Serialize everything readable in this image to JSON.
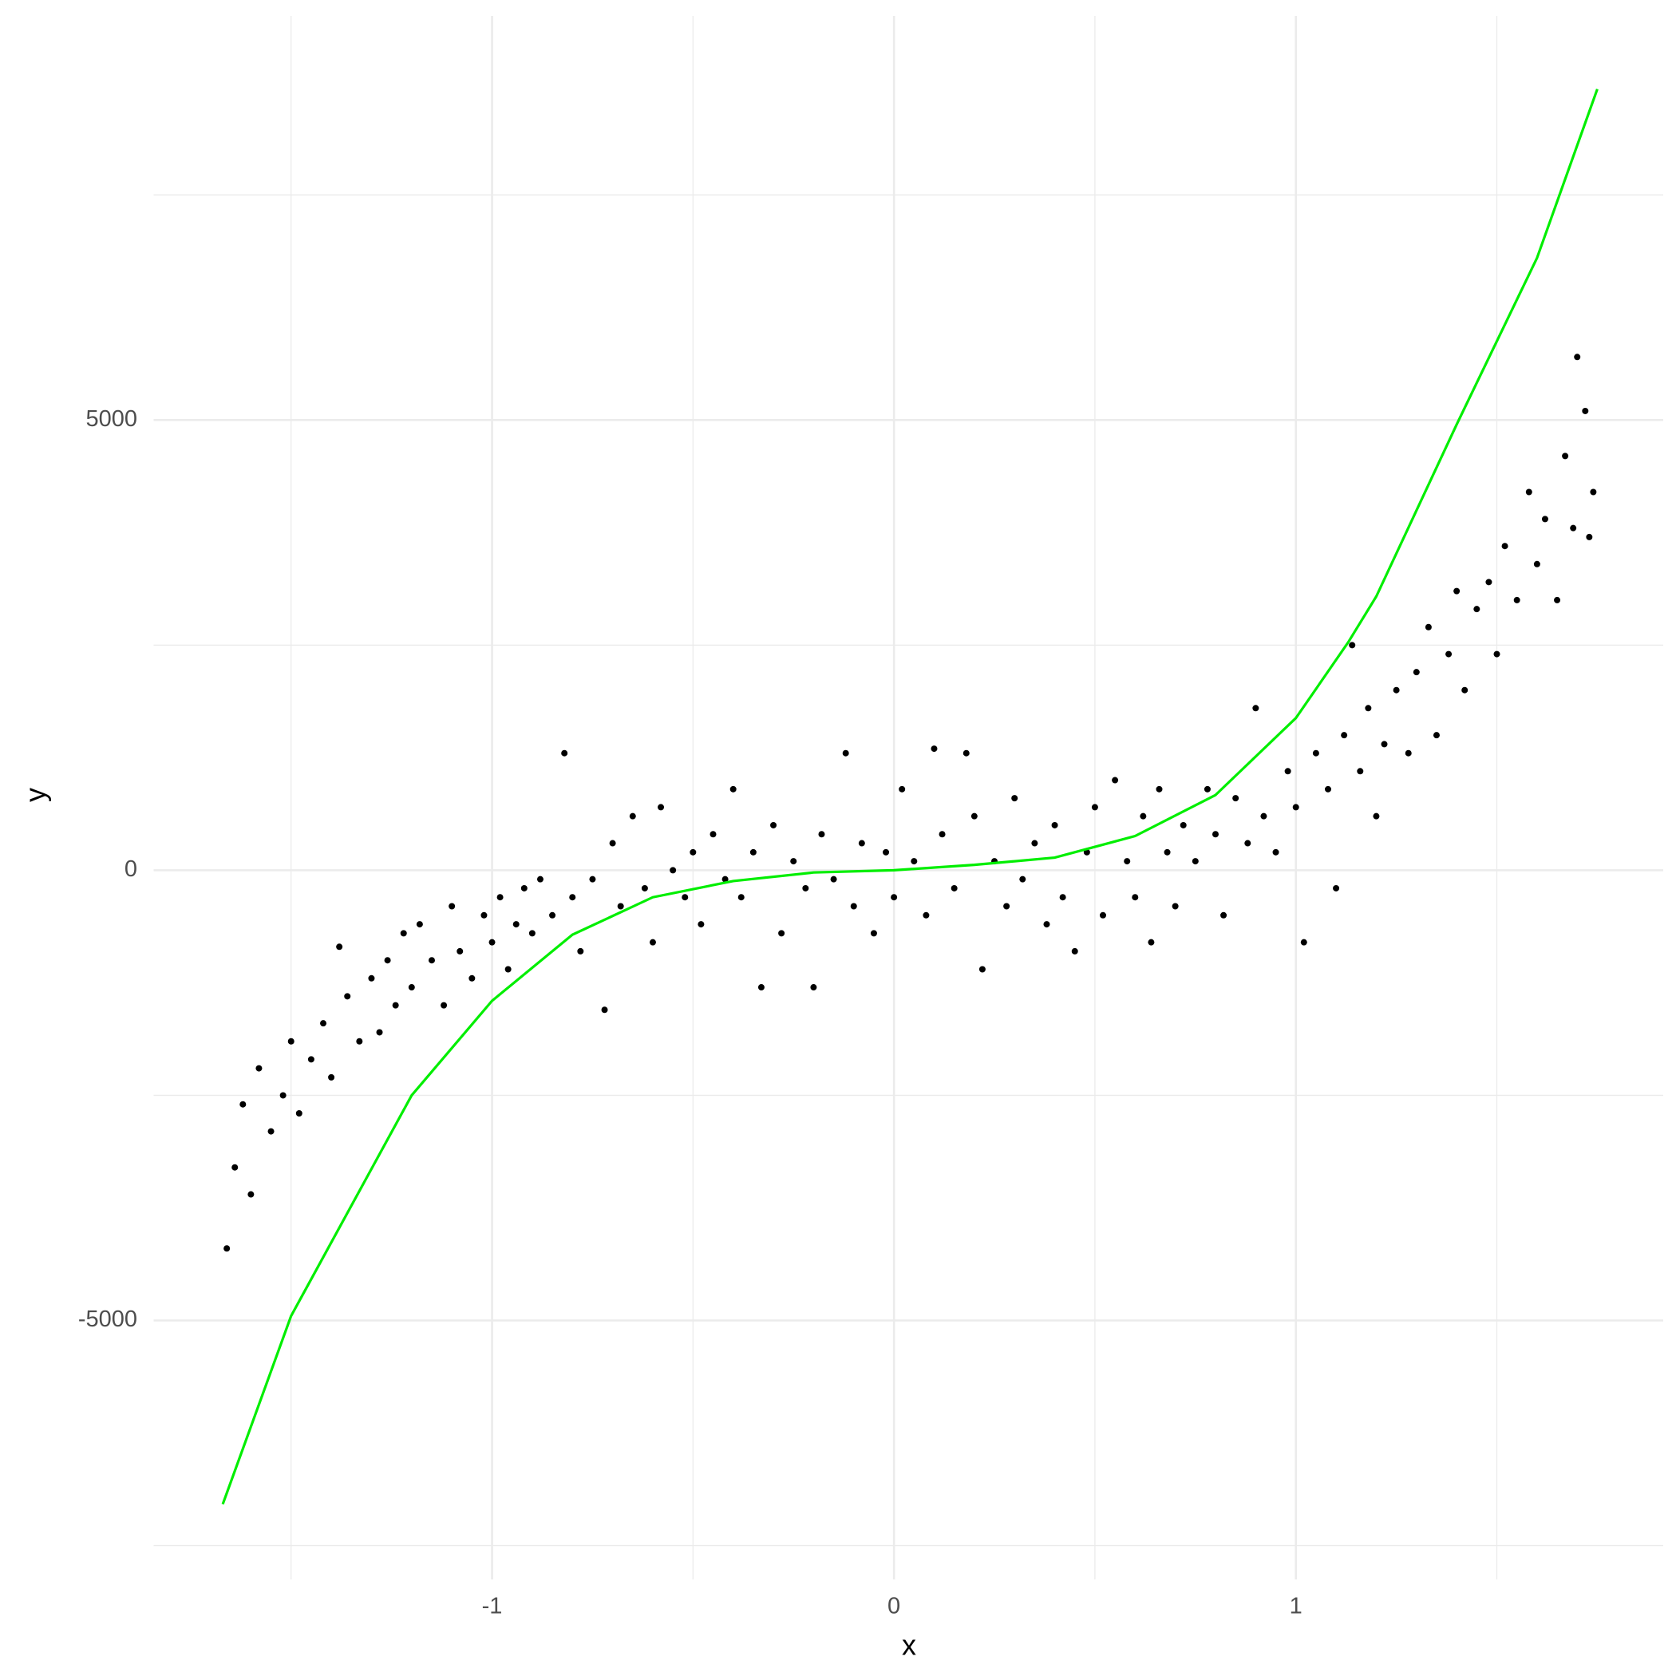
{
  "chart_data": {
    "type": "scatter",
    "x_label": "x",
    "y_label": "y",
    "xlim": [
      -1.842,
      1.914
    ],
    "ylim": [
      -7876,
      9487
    ],
    "xticks": [
      -1,
      0,
      1
    ],
    "yticks": [
      -5000,
      0,
      5000
    ],
    "xminorticks": [
      -1.5,
      -0.5,
      0.5,
      1.5
    ],
    "yminorticks": [
      -7500,
      -2500,
      2500,
      7500
    ],
    "grid": true,
    "series": [
      {
        "mode": "points",
        "color": "#000000",
        "x": [
          -1.66,
          -1.64,
          -1.62,
          -1.6,
          -1.58,
          -1.55,
          -1.52,
          -1.5,
          -1.48,
          -1.45,
          -1.42,
          -1.4,
          -1.38,
          -1.36,
          -1.33,
          -1.3,
          -1.28,
          -1.26,
          -1.24,
          -1.22,
          -1.2,
          -1.18,
          -1.15,
          -1.12,
          -1.1,
          -1.08,
          -1.05,
          -1.02,
          -1,
          -0.98,
          -0.96,
          -0.94,
          -0.92,
          -0.9,
          -0.88,
          -0.85,
          -0.82,
          -0.8,
          -0.78,
          -0.75,
          -0.72,
          -0.7,
          -0.68,
          -0.65,
          -0.62,
          -0.6,
          -0.58,
          -0.55,
          -0.52,
          -0.5,
          -0.48,
          -0.45,
          -0.42,
          -0.4,
          -0.38,
          -0.35,
          -0.33,
          -0.3,
          -0.28,
          -0.25,
          -0.22,
          -0.2,
          -0.18,
          -0.15,
          -0.12,
          -0.1,
          -0.08,
          -0.05,
          -0.02,
          0,
          0.02,
          0.05,
          0.08,
          0.1,
          0.12,
          0.15,
          0.18,
          0.2,
          0.22,
          0.25,
          0.28,
          0.3,
          0.32,
          0.35,
          0.38,
          0.4,
          0.42,
          0.45,
          0.48,
          0.5,
          0.52,
          0.55,
          0.58,
          0.6,
          0.62,
          0.64,
          0.66,
          0.68,
          0.7,
          0.72,
          0.75,
          0.78,
          0.8,
          0.82,
          0.85,
          0.88,
          0.9,
          0.92,
          0.95,
          0.98,
          1,
          1.02,
          1.05,
          1.08,
          1.1,
          1.12,
          1.14,
          1.16,
          1.18,
          1.2,
          1.22,
          1.25,
          1.28,
          1.3,
          1.33,
          1.35,
          1.38,
          1.4,
          1.42,
          1.45,
          1.48,
          1.5,
          1.52,
          1.55,
          1.58,
          1.6,
          1.62,
          1.65,
          1.67,
          1.69,
          1.7,
          1.72,
          1.73,
          1.74
        ],
        "values": [
          -4200,
          -3300,
          -2600,
          -3600,
          -2200,
          -2900,
          -2500,
          -1900,
          -2700,
          -2100,
          -1700,
          -2300,
          -850,
          -1400,
          -1900,
          -1200,
          -1800,
          -1000,
          -1500,
          -700,
          -1300,
          -600,
          -1000,
          -1500,
          -400,
          -900,
          -1200,
          -500,
          -800,
          -300,
          -1100,
          -600,
          -200,
          -700,
          -100,
          -500,
          1300,
          -300,
          -900,
          -100,
          -1550,
          300,
          -400,
          600,
          -200,
          -800,
          700,
          0,
          -300,
          200,
          -600,
          400,
          -100,
          900,
          -300,
          200,
          -1300,
          500,
          -700,
          100,
          -200,
          -1300,
          400,
          -100,
          1300,
          -400,
          300,
          -700,
          200,
          -300,
          900,
          100,
          -500,
          1350,
          400,
          -200,
          1300,
          600,
          -1100,
          100,
          -400,
          800,
          -100,
          300,
          -600,
          500,
          -300,
          -900,
          200,
          700,
          -500,
          1000,
          100,
          -300,
          600,
          -800,
          900,
          200,
          -400,
          500,
          100,
          900,
          400,
          -500,
          800,
          300,
          1800,
          600,
          200,
          1100,
          700,
          -800,
          1300,
          900,
          -200,
          1500,
          2500,
          1100,
          1800,
          600,
          1400,
          2000,
          1300,
          2200,
          2700,
          1500,
          2400,
          3100,
          2000,
          2900,
          3200,
          2400,
          3600,
          3000,
          4200,
          3400,
          3900,
          3000,
          4600,
          3800,
          5700,
          5100,
          3700,
          4200
        ]
      },
      {
        "mode": "line",
        "color": "#00ee00",
        "x": [
          -1.67,
          -1.5,
          -1.2,
          -1,
          -0.8,
          -0.6,
          -0.4,
          -0.2,
          0,
          0.2,
          0.4,
          0.6,
          0.8,
          1,
          1.13,
          1.2,
          1.4,
          1.6,
          1.75
        ],
        "values": [
          -7040,
          -4950,
          -2500,
          -1450,
          -716,
          -300,
          -120,
          -25,
          0,
          60,
          140,
          380,
          835,
          1690,
          2530,
          3040,
          4950,
          6800,
          8675
        ]
      }
    ]
  }
}
